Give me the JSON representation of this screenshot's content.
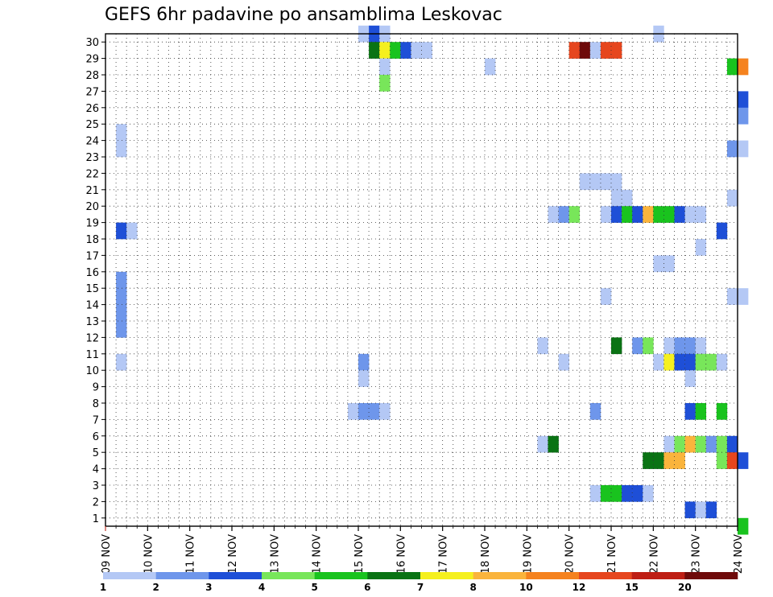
{
  "chart_data": {
    "type": "heatmap",
    "title": "GEFS 6hr padavine po ansamblima Leskovac",
    "x_labels": [
      "09 NOV",
      "10 NOV",
      "11 NOV",
      "12 NOV",
      "13 NOV",
      "14 NOV",
      "15 NOV",
      "16 NOV",
      "17 NOV",
      "18 NOV",
      "19 NOV",
      "20 NOV",
      "21 NOV",
      "22 NOV",
      "23 NOV",
      "24 NOV"
    ],
    "y_labels": [
      "1",
      "2",
      "3",
      "4",
      "5",
      "6",
      "7",
      "8",
      "9",
      "10",
      "11",
      "12",
      "13",
      "14",
      "15",
      "16",
      "17",
      "18",
      "19",
      "20",
      "21",
      "22",
      "23",
      "24",
      "25",
      "26",
      "27",
      "28",
      "29",
      "30"
    ],
    "x_unit": "6h step (4 per day)",
    "ylim": [
      0,
      30
    ],
    "grid": true,
    "legend_position": "bottom",
    "legend": {
      "labels": [
        "1",
        "2",
        "3",
        "4",
        "5",
        "6",
        "7",
        "8",
        "10",
        "12",
        "15",
        "20"
      ],
      "colors": [
        "#b4c8f5",
        "#6e96eb",
        "#1e4fd7",
        "#78e65a",
        "#19c31e",
        "#0a7314",
        "#f5f01e",
        "#fab43c",
        "#f5821e",
        "#e6461e",
        "#be1e14",
        "#6e0a0a"
      ]
    },
    "color_levels": [
      "#b4c8f5",
      "#6e96eb",
      "#1e4fd7",
      "#78e65a",
      "#19c31e",
      "#0a7314",
      "#f5f01e",
      "#fab43c",
      "#f5821e",
      "#e6461e",
      "#be1e14",
      "#6e0a0a"
    ],
    "cells": [
      [
        30,
        24,
        0
      ],
      [
        30,
        25,
        2
      ],
      [
        30,
        26,
        0
      ],
      [
        30,
        52,
        0
      ],
      [
        29,
        25,
        5
      ],
      [
        29,
        26,
        6
      ],
      [
        29,
        27,
        4
      ],
      [
        29,
        28,
        2
      ],
      [
        29,
        29,
        0
      ],
      [
        29,
        30,
        0
      ],
      [
        29,
        44,
        9
      ],
      [
        29,
        45,
        11
      ],
      [
        29,
        46,
        0
      ],
      [
        29,
        47,
        9
      ],
      [
        29,
        48,
        9
      ],
      [
        28,
        26,
        0
      ],
      [
        28,
        36,
        0
      ],
      [
        28,
        59,
        4
      ],
      [
        28,
        60,
        8
      ],
      [
        27,
        26,
        3
      ],
      [
        26,
        60,
        2
      ],
      [
        25,
        60,
        1
      ],
      [
        24,
        1,
        0
      ],
      [
        23,
        1,
        0
      ],
      [
        23,
        59,
        1
      ],
      [
        23,
        60,
        0
      ],
      [
        21,
        45,
        0
      ],
      [
        21,
        46,
        0
      ],
      [
        21,
        47,
        0
      ],
      [
        21,
        48,
        0
      ],
      [
        20,
        48,
        0
      ],
      [
        20,
        49,
        0
      ],
      [
        20,
        59,
        0
      ],
      [
        19,
        42,
        0
      ],
      [
        19,
        43,
        1
      ],
      [
        19,
        44,
        3
      ],
      [
        19,
        47,
        0
      ],
      [
        19,
        48,
        2
      ],
      [
        19,
        49,
        4
      ],
      [
        19,
        50,
        2
      ],
      [
        19,
        51,
        7
      ],
      [
        19,
        52,
        4
      ],
      [
        19,
        53,
        4
      ],
      [
        19,
        54,
        2
      ],
      [
        19,
        55,
        0
      ],
      [
        19,
        56,
        0
      ],
      [
        18,
        1,
        2
      ],
      [
        18,
        2,
        0
      ],
      [
        18,
        58,
        2
      ],
      [
        17,
        56,
        0
      ],
      [
        16,
        52,
        0
      ],
      [
        16,
        53,
        0
      ],
      [
        15,
        1,
        1
      ],
      [
        14,
        1,
        1
      ],
      [
        14,
        47,
        0
      ],
      [
        14,
        59,
        0
      ],
      [
        14,
        60,
        0
      ],
      [
        13,
        1,
        1
      ],
      [
        12,
        1,
        1
      ],
      [
        11,
        41,
        0
      ],
      [
        11,
        48,
        5
      ],
      [
        11,
        50,
        1
      ],
      [
        11,
        51,
        3
      ],
      [
        11,
        53,
        0
      ],
      [
        11,
        54,
        1
      ],
      [
        11,
        55,
        1
      ],
      [
        11,
        56,
        0
      ],
      [
        10,
        1,
        0
      ],
      [
        10,
        24,
        1
      ],
      [
        10,
        43,
        0
      ],
      [
        10,
        52,
        0
      ],
      [
        10,
        53,
        6
      ],
      [
        10,
        54,
        2
      ],
      [
        10,
        55,
        2
      ],
      [
        10,
        56,
        3
      ],
      [
        10,
        57,
        3
      ],
      [
        10,
        58,
        0
      ],
      [
        9,
        24,
        0
      ],
      [
        9,
        55,
        0
      ],
      [
        7,
        23,
        0
      ],
      [
        7,
        24,
        1
      ],
      [
        7,
        25,
        1
      ],
      [
        7,
        26,
        0
      ],
      [
        7,
        46,
        1
      ],
      [
        7,
        55,
        2
      ],
      [
        7,
        56,
        4
      ],
      [
        7,
        58,
        4
      ],
      [
        5,
        41,
        0
      ],
      [
        5,
        42,
        5
      ],
      [
        5,
        53,
        0
      ],
      [
        5,
        54,
        3
      ],
      [
        5,
        55,
        7
      ],
      [
        5,
        56,
        3
      ],
      [
        5,
        57,
        1
      ],
      [
        5,
        58,
        3
      ],
      [
        5,
        59,
        2
      ],
      [
        4,
        51,
        5
      ],
      [
        4,
        52,
        5
      ],
      [
        4,
        53,
        7
      ],
      [
        4,
        54,
        7
      ],
      [
        4,
        58,
        3
      ],
      [
        4,
        59,
        9
      ],
      [
        4,
        60,
        2
      ],
      [
        2,
        46,
        0
      ],
      [
        2,
        47,
        4
      ],
      [
        2,
        48,
        4
      ],
      [
        2,
        49,
        2
      ],
      [
        2,
        50,
        2
      ],
      [
        2,
        51,
        0
      ],
      [
        1,
        55,
        2
      ],
      [
        1,
        56,
        0
      ],
      [
        1,
        57,
        2
      ],
      [
        0,
        60,
        4
      ]
    ]
  }
}
